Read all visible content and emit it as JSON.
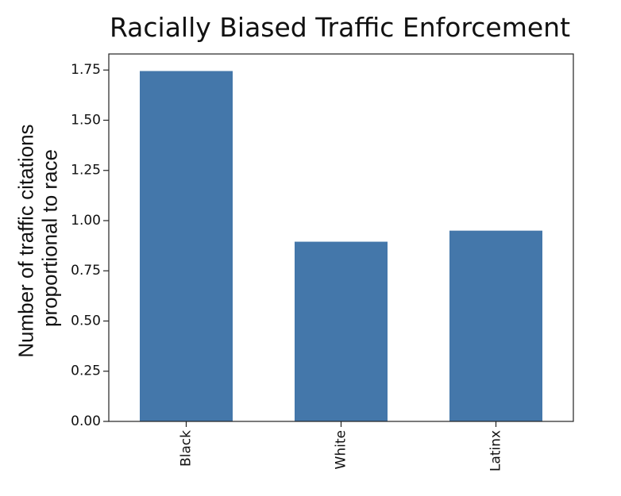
{
  "chart_data": {
    "type": "bar",
    "title": "Racially Biased Traffic Enforcement",
    "xlabel": "",
    "ylabel_lines": [
      "Number of traffic citations",
      "proportional to race"
    ],
    "categories": [
      "Black",
      "White",
      "Latinx"
    ],
    "values": [
      1.745,
      0.895,
      0.95
    ],
    "ylim": [
      0,
      1.83
    ],
    "yticks": [
      0.0,
      0.25,
      0.5,
      0.75,
      1.0,
      1.25,
      1.5,
      1.75
    ],
    "ytick_labels": [
      "0.00",
      "0.25",
      "0.50",
      "0.75",
      "1.00",
      "1.25",
      "1.50",
      "1.75"
    ],
    "bar_color": "#4477aa",
    "grid": false
  }
}
